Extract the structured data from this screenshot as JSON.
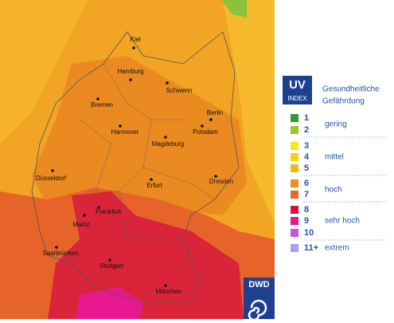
{
  "header": {
    "title": "UV",
    "subtitle": "INDEX",
    "heading": [
      "Gesundheitliche",
      "Gefährdung"
    ]
  },
  "legend": {
    "levels": [
      {
        "label": "1",
        "color": "#2e9b34"
      },
      {
        "label": "2",
        "color": "#9cc42c"
      },
      {
        "label": "3",
        "color": "#f7e81e"
      },
      {
        "label": "4",
        "color": "#f8d11c"
      },
      {
        "label": "5",
        "color": "#f6b61c"
      },
      {
        "label": "6",
        "color": "#f08d20"
      },
      {
        "label": "7",
        "color": "#e8682c"
      },
      {
        "label": "8",
        "color": "#d4143a"
      },
      {
        "label": "9",
        "color": "#e8198e"
      },
      {
        "label": "10",
        "color": "#c556e0"
      },
      {
        "label": "11+",
        "color": "#a99ef2"
      }
    ],
    "categories": [
      "gering",
      "mittel",
      "hoch",
      "sehr hoch",
      "extrem"
    ]
  },
  "cities": [
    "Kiel",
    "Hamburg",
    "Schwerin",
    "Bremen",
    "Berlin",
    "Potsdam",
    "Hannover",
    "Magdeburg",
    "Düsseldorf",
    "Erfurt",
    "Dresden",
    "Frankfurt",
    "Mainz",
    "Saarbrücken",
    "Stuttgart",
    "München"
  ],
  "logo": "DWD"
}
